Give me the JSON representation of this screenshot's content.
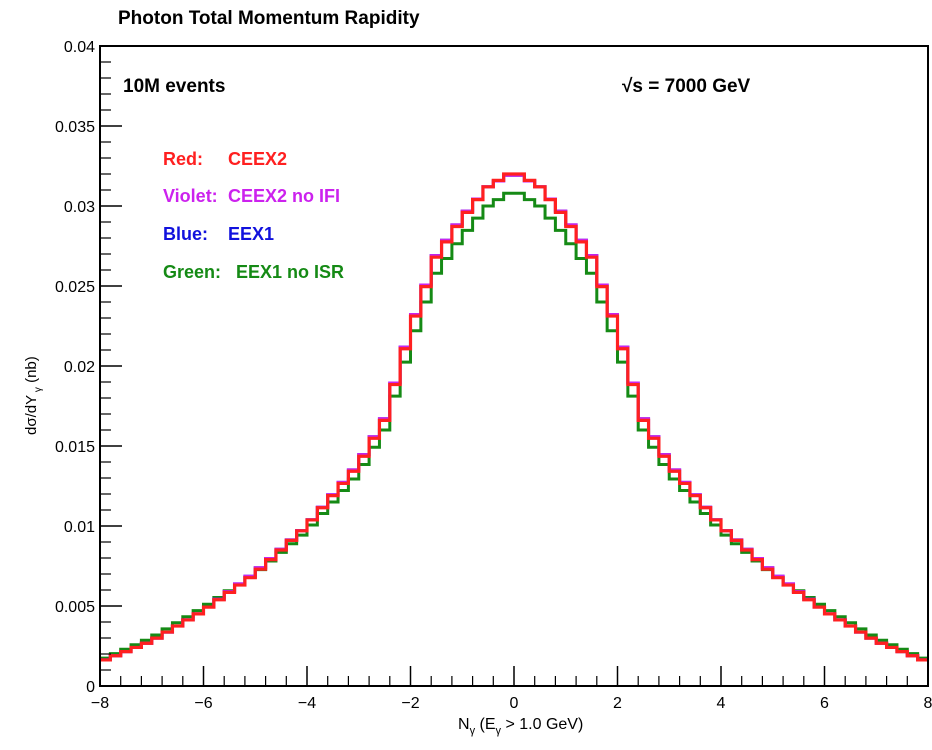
{
  "colors": {
    "red": "#ff2020",
    "violet": "#cc22ee",
    "blue": "#1111dd",
    "green": "#158a15",
    "axis": "#000000"
  },
  "chart_data": {
    "type": "line",
    "title": "Photon Total Momentum Rapidity",
    "xlabel": "N_γ (E_γ > 1.0 GeV)",
    "ylabel": "dσ/dY_γ (nb)",
    "xlim": [
      -8,
      8
    ],
    "ylim": [
      0,
      0.04
    ],
    "xticks": [
      -8,
      -6,
      -4,
      -2,
      0,
      2,
      4,
      6,
      8
    ],
    "xtick_labels": [
      "−8",
      "−6",
      "−4",
      "−2",
      "0",
      "2",
      "4",
      "6",
      "8"
    ],
    "yticks": [
      0,
      0.005,
      0.01,
      0.015,
      0.02,
      0.025,
      0.03,
      0.035,
      0.04
    ],
    "ytick_labels": [
      "0",
      "0.005",
      "0.01",
      "0.015",
      "0.02",
      "0.025",
      "0.03",
      "0.035",
      "0.04"
    ],
    "grid": false,
    "annotations": {
      "events": "10M events",
      "energy": "√s = 7000 GeV"
    },
    "legend": [
      {
        "label": "Red:",
        "desc": "CEEX2",
        "color": "#ff2020"
      },
      {
        "label": "Violet:",
        "desc": "CEEX2 no IFI",
        "color": "#cc22ee"
      },
      {
        "label": "Blue:",
        "desc": "EEX1",
        "color": "#1111dd"
      },
      {
        "label": "Green:",
        "desc": "EEX1 no ISR",
        "color": "#158a15"
      }
    ],
    "histogram": {
      "bins": 80,
      "bin_width": 0.2,
      "x_start": -8
    },
    "series": [
      {
        "name": "CEEX2",
        "color": "#ff2020",
        "profile_x": [
          0,
          0.5,
          1.0,
          1.5,
          2.0,
          2.5,
          3.0,
          4.0,
          5.0,
          6.0,
          7.0,
          8.0
        ],
        "profile_y": [
          0.0322,
          0.0312,
          0.0292,
          0.0268,
          0.0222,
          0.0166,
          0.0138,
          0.01,
          0.007,
          0.0047,
          0.0028,
          0.0015
        ]
      },
      {
        "name": "CEEX2 no IFI",
        "color": "#cc22ee",
        "profile_x": [
          0,
          0.5,
          1.0,
          1.5,
          2.0,
          2.5,
          3.0,
          4.0,
          5.0,
          6.0,
          7.0,
          8.0
        ],
        "profile_y": [
          0.0321,
          0.0312,
          0.0293,
          0.0269,
          0.0223,
          0.0167,
          0.0139,
          0.01,
          0.0071,
          0.0047,
          0.0028,
          0.0015
        ]
      },
      {
        "name": "EEX1",
        "color": "#1111dd",
        "profile_x": [
          0,
          0.5,
          1.0,
          1.5,
          2.0,
          2.5,
          3.0,
          4.0,
          5.0,
          6.0,
          7.0,
          8.0
        ],
        "profile_y": [
          0.0321,
          0.0312,
          0.0293,
          0.0269,
          0.0223,
          0.0167,
          0.0139,
          0.01,
          0.0071,
          0.0047,
          0.0028,
          0.0015
        ]
      },
      {
        "name": "EEX1 no ISR",
        "color": "#158a15",
        "profile_x": [
          0,
          0.5,
          1.0,
          1.5,
          2.0,
          2.5,
          3.0,
          4.0,
          5.0,
          6.0,
          7.0,
          8.0
        ],
        "profile_y": [
          0.031,
          0.03,
          0.0281,
          0.0258,
          0.0213,
          0.016,
          0.0133,
          0.0097,
          0.007,
          0.0049,
          0.003,
          0.0016
        ]
      }
    ]
  }
}
